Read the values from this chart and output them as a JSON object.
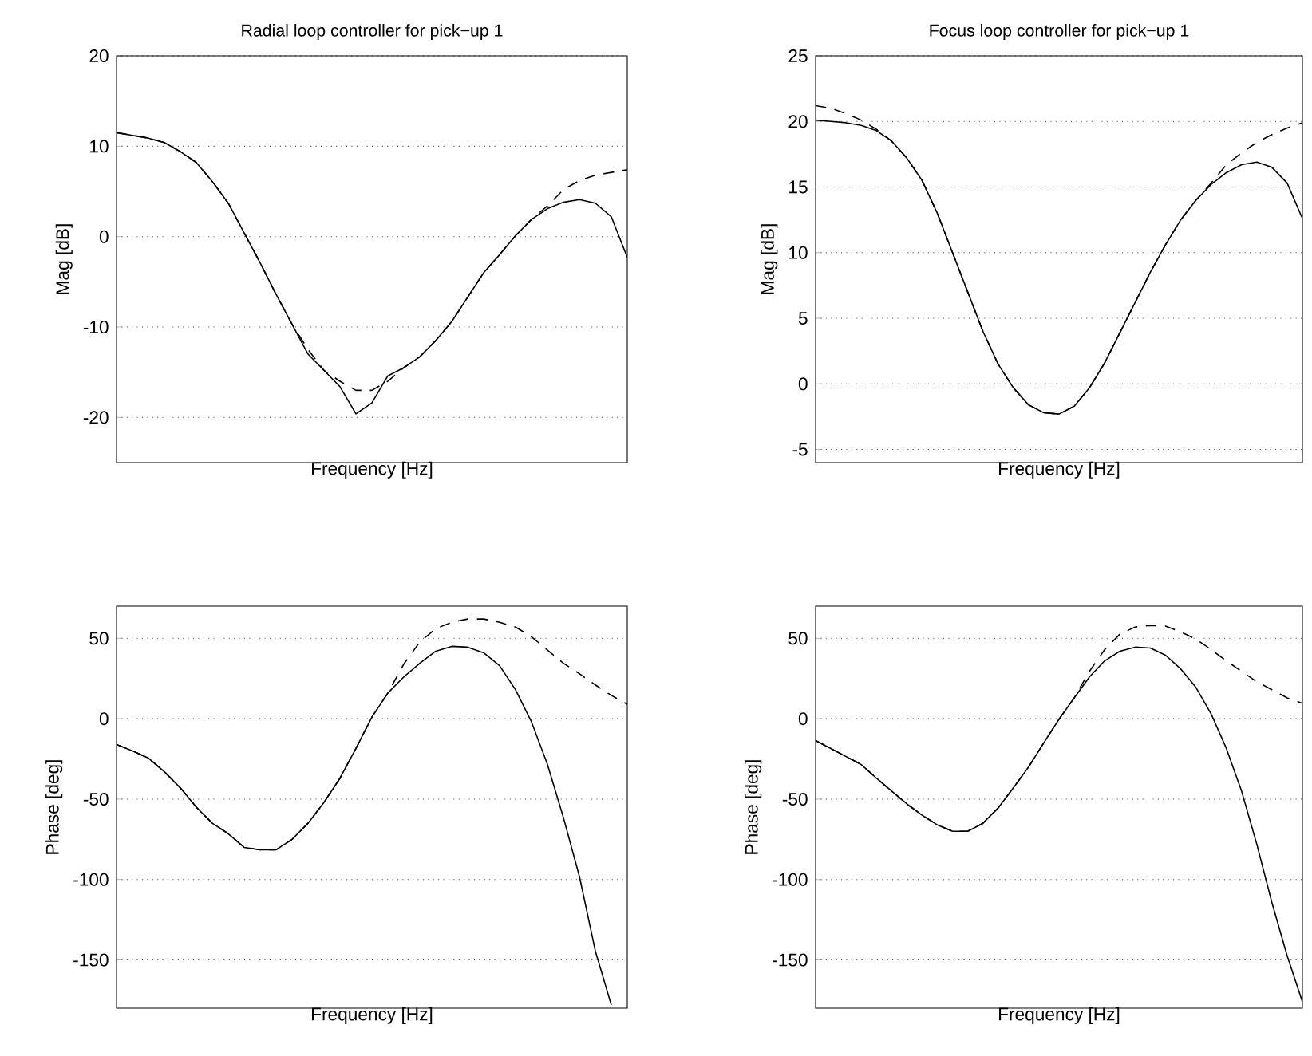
{
  "chart_data": [
    {
      "type": "line",
      "title": "Radial loop controller for pick−up 1",
      "xlabel": "Frequency [Hz]",
      "ylabel": "Mag [dB]",
      "categories": [
        null,
        null,
        null,
        null,
        null,
        null,
        null,
        null,
        null,
        null,
        null,
        null,
        null,
        null,
        null,
        null,
        null,
        null,
        null,
        null,
        null,
        null,
        null,
        null,
        null,
        null,
        null,
        null,
        null,
        null,
        null,
        null,
        null
      ],
      "ylim": [
        -25,
        20
      ],
      "yticks": [
        -20,
        -10,
        0,
        10,
        20
      ],
      "grid": "y",
      "tick_labels": "y",
      "series": [
        {
          "color": "#000000",
          "line_style": "solid",
          "values": [
            11.5,
            11.2,
            10.9,
            10.4,
            9.4,
            8.2,
            6.1,
            3.7,
            0.4,
            -2.9,
            -6.4,
            -9.7,
            -13,
            -14.8,
            -16.6,
            -19.6,
            -18.4,
            -15.4,
            -14.5,
            -13.3,
            -11.5,
            -9.4,
            -6.7,
            -4,
            -2,
            0.1,
            1.9,
            3.1,
            3.8,
            4.1,
            3.7,
            2.2,
            -2.3
          ]
        },
        {
          "color": "#000000",
          "line_style": "dashed",
          "values": [
            11.5,
            11.2,
            10.9,
            10.4,
            9.4,
            8.2,
            6.1,
            3.7,
            0.4,
            -2.9,
            -6.4,
            -9.7,
            -12.5,
            -14.8,
            -16,
            -17,
            -17,
            -16,
            -14.5,
            -13.3,
            -11.5,
            -9.4,
            -6.7,
            -4,
            -2,
            0.1,
            1.9,
            3.4,
            5.2,
            6.2,
            6.8,
            7.1,
            7.4
          ]
        }
      ]
    },
    {
      "type": "line",
      "title": "Focus loop controller for pick−up 1",
      "xlabel": "Frequency [Hz]",
      "ylabel": "Mag [dB]",
      "categories": [
        null,
        null,
        null,
        null,
        null,
        null,
        null,
        null,
        null,
        null,
        null,
        null,
        null,
        null,
        null,
        null,
        null,
        null,
        null,
        null,
        null,
        null,
        null,
        null,
        null,
        null,
        null,
        null,
        null,
        null,
        null,
        null,
        null
      ],
      "ylim": [
        -6,
        25
      ],
      "yticks": [
        -5,
        0,
        5,
        10,
        15,
        20,
        25
      ],
      "grid": "y",
      "tick_labels": "y",
      "series": [
        {
          "color": "#000000",
          "line_style": "solid",
          "values": [
            20.1,
            20.0,
            19.9,
            19.7,
            19.3,
            18.5,
            17.2,
            15.5,
            13.0,
            10.0,
            7.0,
            4.0,
            1.5,
            -0.3,
            -1.6,
            -2.2,
            -2.3,
            -1.7,
            -0.3,
            1.6,
            3.9,
            6.2,
            8.5,
            10.6,
            12.5,
            14.0,
            15.2,
            16.1,
            16.7,
            16.9,
            16.5,
            15.3,
            12.6
          ]
        },
        {
          "color": "#000000",
          "line_style": "dashed",
          "values": [
            21.2,
            21.0,
            20.6,
            20.1,
            19.4,
            18.5,
            17.2,
            15.5,
            13.0,
            10.0,
            7.0,
            4.0,
            1.5,
            -0.3,
            -1.6,
            -2.2,
            -2.3,
            -1.7,
            -0.3,
            1.6,
            3.9,
            6.2,
            8.5,
            10.6,
            12.5,
            14.0,
            15.3,
            16.7,
            17.6,
            18.4,
            19.0,
            19.5,
            19.9
          ]
        }
      ]
    },
    {
      "type": "line",
      "xlabel": "Frequency [Hz]",
      "ylabel": "Phase [deg]",
      "categories": [
        null,
        null,
        null,
        null,
        null,
        null,
        null,
        null,
        null,
        null,
        null,
        null,
        null,
        null,
        null,
        null,
        null,
        null,
        null,
        null,
        null,
        null,
        null,
        null,
        null,
        null,
        null,
        null,
        null,
        null,
        null,
        null,
        null
      ],
      "ylim": [
        -180,
        70
      ],
      "yticks": [
        -150,
        -100,
        -50,
        0,
        50
      ],
      "grid": "y",
      "tick_labels": "y",
      "series": [
        {
          "color": "#000000",
          "line_style": "solid",
          "values": [
            -16,
            -20,
            -24.5,
            -33,
            -43,
            -55,
            -65,
            -71.5,
            -80,
            -81.5,
            -81.5,
            -75,
            -65,
            -52,
            -37,
            -18.5,
            1,
            16,
            26,
            34.5,
            42,
            45,
            44.5,
            41,
            33,
            18,
            -2,
            -28.5,
            -61.5,
            -98,
            -144.5,
            -178,
            null
          ]
        },
        {
          "color": "#000000",
          "line_style": "dashed",
          "values": [
            -16,
            -20,
            -24.5,
            -33,
            -43,
            -55,
            -65,
            -71.5,
            -80,
            -81.5,
            -81.5,
            -75,
            -65,
            -52,
            -37,
            -18.5,
            1,
            16,
            34,
            47.7,
            56,
            60,
            62,
            62,
            60,
            57,
            51,
            42.7,
            34.5,
            28,
            21,
            14.5,
            9
          ]
        }
      ]
    },
    {
      "type": "line",
      "xlabel": "Frequency [Hz]",
      "ylabel": "Phase [deg]",
      "categories": [
        null,
        null,
        null,
        null,
        null,
        null,
        null,
        null,
        null,
        null,
        null,
        null,
        null,
        null,
        null,
        null,
        null,
        null,
        null,
        null,
        null,
        null,
        null,
        null,
        null,
        null,
        null,
        null,
        null,
        null,
        null,
        null,
        null
      ],
      "ylim": [
        -180,
        70
      ],
      "yticks": [
        -150,
        -100,
        -50,
        0,
        50
      ],
      "grid": "y",
      "tick_labels": "y",
      "series": [
        {
          "color": "#000000",
          "line_style": "solid",
          "values": [
            -13.6,
            -18.5,
            -23.5,
            -28.5,
            -37,
            -45,
            -53,
            -60,
            -66,
            -70,
            -70,
            -65,
            -55.5,
            -43,
            -30,
            -15,
            -0.3,
            13,
            26,
            36,
            42,
            44.5,
            44,
            39.5,
            31,
            19.5,
            3,
            -18.5,
            -45,
            -78,
            -114.5,
            -147.5,
            -176
          ]
        },
        {
          "color": "#000000",
          "line_style": "dashed",
          "values": [
            -13.6,
            -18.5,
            -23.5,
            -28.5,
            -37,
            -45,
            -53,
            -60,
            -66,
            -70,
            -70,
            -65,
            -55.5,
            -43,
            -30,
            -15,
            -0.3,
            13,
            29.5,
            43,
            52.6,
            57,
            58,
            57.6,
            54,
            49.5,
            43,
            36,
            29.5,
            23,
            18,
            13,
            9.6
          ]
        }
      ]
    }
  ]
}
